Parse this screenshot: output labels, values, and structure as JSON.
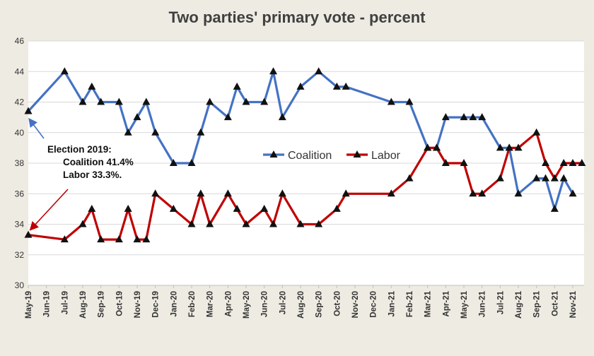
{
  "chart_data": {
    "type": "line",
    "title": "Two parties' primary vote - percent",
    "x_tick_labels": [
      "May-19",
      "Jun-19",
      "Jul-19",
      "Aug-19",
      "Sep-19",
      "Oct-19",
      "Nov-19",
      "Dec-19",
      "Jan-20",
      "Feb-20",
      "Mar-20",
      "Apr-20",
      "May-20",
      "Jun-20",
      "Jul-20",
      "Aug-20",
      "Sep-20",
      "Oct-20",
      "Nov-20",
      "Dec-20",
      "Jan-21",
      "Feb-21",
      "Mar-21",
      "Apr-21",
      "May-21",
      "Jun-21",
      "Jul-21",
      "Aug-21",
      "Sep-21",
      "Oct-21",
      "Nov-21"
    ],
    "y_ticks": [
      30,
      32,
      34,
      36,
      38,
      40,
      42,
      44,
      46
    ],
    "ylim": [
      30,
      46
    ],
    "grid": true,
    "legend_position": "center-right",
    "series": [
      {
        "name": "Coalition",
        "color": "#4472c4",
        "points": [
          [
            "May-19",
            41.4
          ],
          [
            "Jul-19",
            44
          ],
          [
            "Aug-19",
            42
          ],
          [
            "Aug-19",
            43
          ],
          [
            "Sep-19",
            42
          ],
          [
            "Oct-19",
            42
          ],
          [
            "Oct-19",
            40
          ],
          [
            "Nov-19",
            41
          ],
          [
            "Nov-19",
            42
          ],
          [
            "Dec-19",
            40
          ],
          [
            "Jan-20",
            38
          ],
          [
            "Feb-20",
            38
          ],
          [
            "Feb-20",
            40
          ],
          [
            "Mar-20",
            42
          ],
          [
            "Apr-20",
            41
          ],
          [
            "Apr-20",
            43
          ],
          [
            "May-20",
            42
          ],
          [
            "Jun-20",
            42
          ],
          [
            "Jun-20",
            44
          ],
          [
            "Jul-20",
            41
          ],
          [
            "Aug-20",
            43
          ],
          [
            "Sep-20",
            44
          ],
          [
            "Oct-20",
            43
          ],
          [
            "Oct-20",
            43
          ],
          [
            "Jan-21",
            42
          ],
          [
            "Feb-21",
            42
          ],
          [
            "Mar-21",
            39
          ],
          [
            "Mar-21",
            39
          ],
          [
            "Apr-21",
            41
          ],
          [
            "May-21",
            41
          ],
          [
            "May-21",
            41
          ],
          [
            "Jun-21",
            41
          ],
          [
            "Jul-21",
            39
          ],
          [
            "Jul-21",
            39
          ],
          [
            "Aug-21",
            36
          ],
          [
            "Sep-21",
            37
          ],
          [
            "Sep-21",
            37
          ],
          [
            "Oct-21",
            35
          ],
          [
            "Oct-21",
            37
          ],
          [
            "Nov-21",
            36
          ]
        ]
      },
      {
        "name": "Labor",
        "color": "#c00000",
        "points": [
          [
            "May-19",
            33.3
          ],
          [
            "Jul-19",
            33
          ],
          [
            "Aug-19",
            34
          ],
          [
            "Aug-19",
            35
          ],
          [
            "Sep-19",
            33
          ],
          [
            "Oct-19",
            33
          ],
          [
            "Oct-19",
            35
          ],
          [
            "Nov-19",
            33
          ],
          [
            "Nov-19",
            33
          ],
          [
            "Dec-19",
            36
          ],
          [
            "Jan-20",
            35
          ],
          [
            "Feb-20",
            34
          ],
          [
            "Feb-20",
            36
          ],
          [
            "Mar-20",
            34
          ],
          [
            "Apr-20",
            36
          ],
          [
            "Apr-20",
            35
          ],
          [
            "May-20",
            34
          ],
          [
            "Jun-20",
            35
          ],
          [
            "Jun-20",
            34
          ],
          [
            "Jul-20",
            36
          ],
          [
            "Aug-20",
            34
          ],
          [
            "Sep-20",
            34
          ],
          [
            "Oct-20",
            35
          ],
          [
            "Oct-20",
            36
          ],
          [
            "Jan-21",
            36
          ],
          [
            "Feb-21",
            37
          ],
          [
            "Mar-21",
            39
          ],
          [
            "Mar-21",
            39
          ],
          [
            "Apr-21",
            38
          ],
          [
            "May-21",
            38
          ],
          [
            "May-21",
            36
          ],
          [
            "Jun-21",
            36
          ],
          [
            "Jul-21",
            37
          ],
          [
            "Jul-21",
            39
          ],
          [
            "Aug-21",
            39
          ],
          [
            "Sep-21",
            40
          ],
          [
            "Sep-21",
            38
          ],
          [
            "Oct-21",
            37
          ],
          [
            "Oct-21",
            38
          ],
          [
            "Nov-21",
            38
          ],
          [
            "Nov-21",
            38
          ]
        ]
      }
    ],
    "annotations": {
      "line1": "Election 2019:",
      "line2": "Coalition  41.4%",
      "line3": "Labor 33.3%."
    }
  }
}
